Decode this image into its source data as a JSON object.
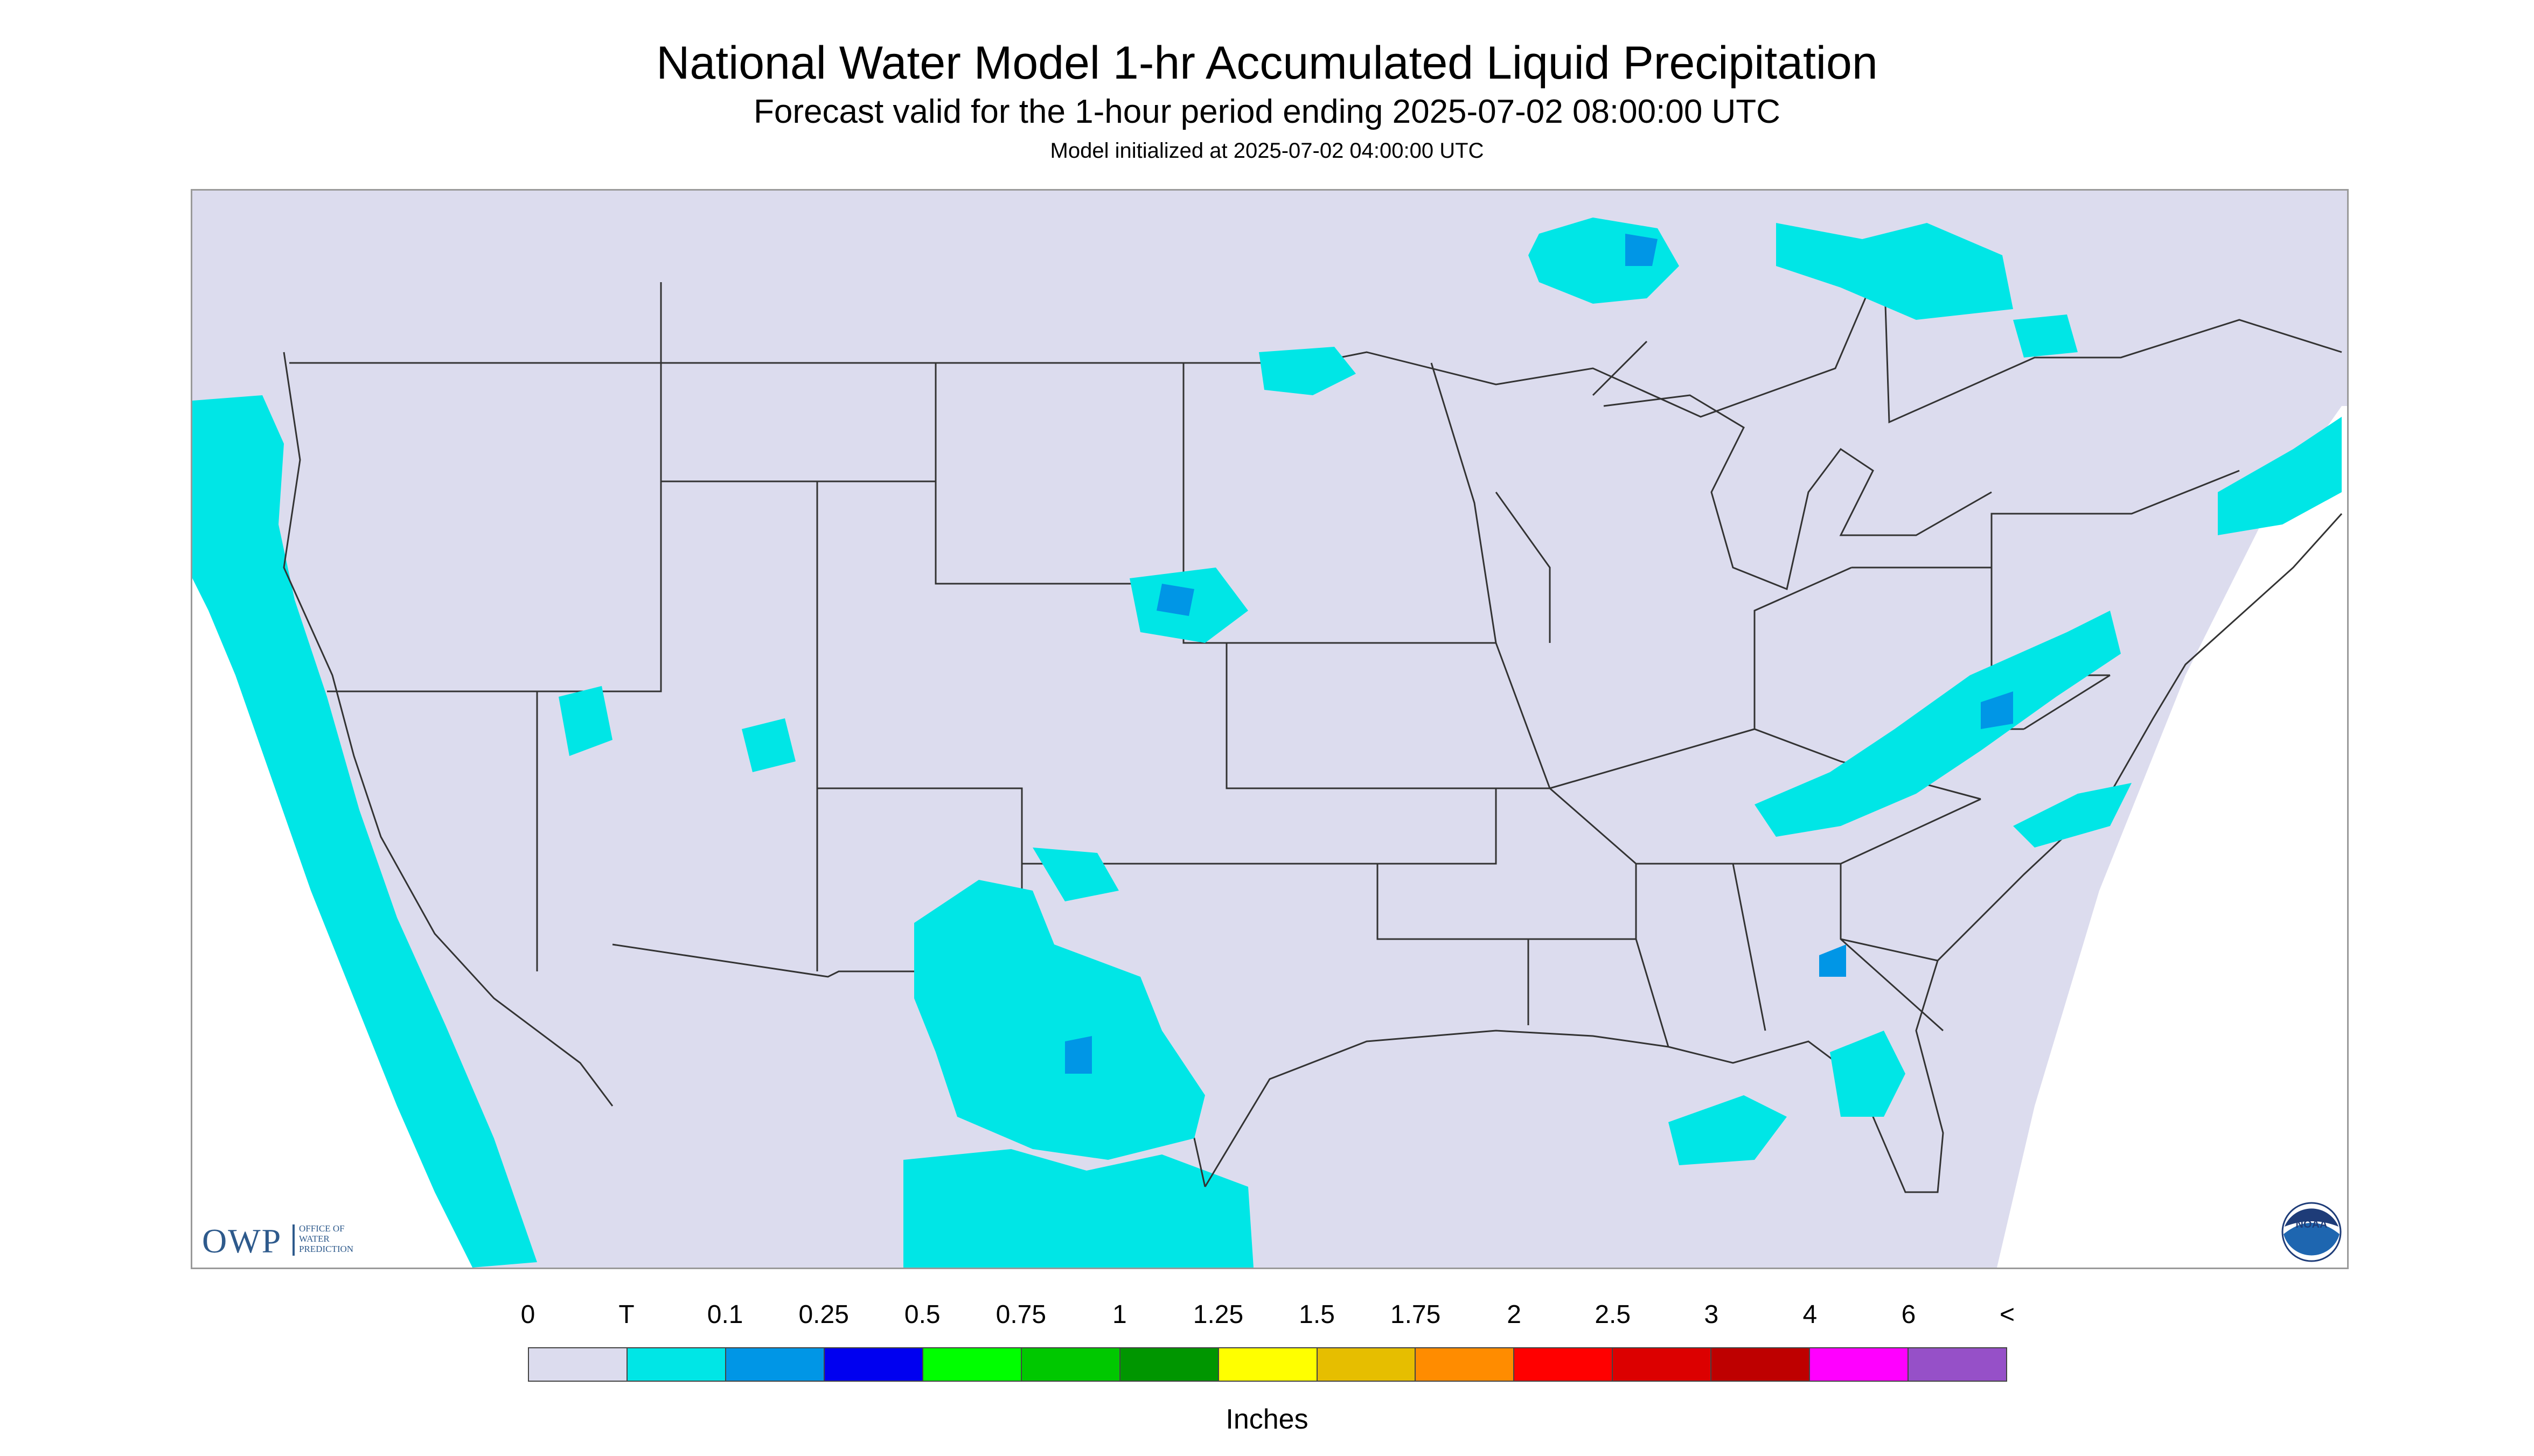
{
  "header": {
    "title": "National Water Model 1-hr Accumulated Liquid Precipitation",
    "subtitle": "Forecast valid for the 1-hour period ending 2025-07-02 08:00:00 UTC",
    "init": "Model initialized at 2025-07-02 04:00:00 UTC"
  },
  "map": {
    "background_color": "#dcdcee",
    "border_color": "#333333",
    "logos": {
      "owp_letters": "OWP",
      "owp_text": "OFFICE OF WATER PREDICTION",
      "noaa_text": "NOAA"
    }
  },
  "legend": {
    "tick_labels": [
      "0",
      "T",
      "0.1",
      "0.25",
      "0.5",
      "0.75",
      "1",
      "1.25",
      "1.5",
      "1.75",
      "2",
      "2.5",
      "3",
      "4",
      "6",
      "<"
    ],
    "colors": [
      "#dcdcee",
      "#00e6e6",
      "#0096e6",
      "#0000f0",
      "#00ff00",
      "#00c800",
      "#009600",
      "#ffff00",
      "#e6be00",
      "#ff8c00",
      "#ff0000",
      "#dc0000",
      "#be0000",
      "#ff00ff",
      "#9650c8"
    ],
    "units": "Inches"
  }
}
